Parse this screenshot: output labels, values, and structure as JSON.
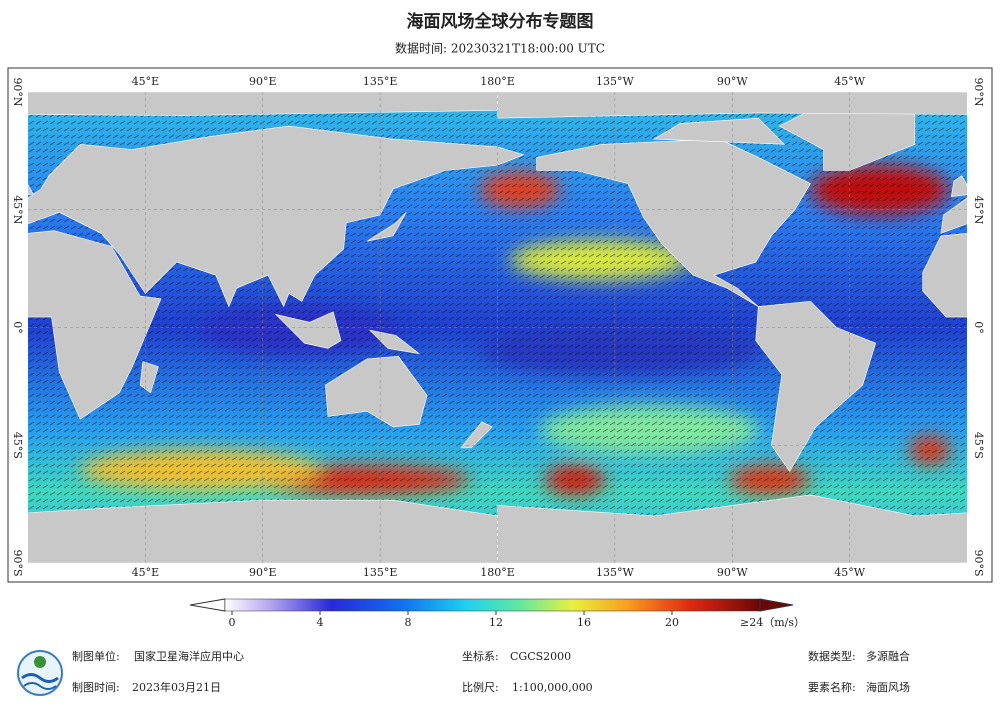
{
  "header": {
    "title": "海面风场全球分布专题图",
    "subtitle": "数据时间: 20230321T18:00:00 UTC"
  },
  "map": {
    "lon_labels": [
      "45°E",
      "90°E",
      "135°E",
      "180°E",
      "135°W",
      "90°W",
      "45°W"
    ],
    "lat_labels": [
      "90°N",
      "45°N",
      "0°",
      "45°S",
      "90°S"
    ]
  },
  "legend": {
    "range": [
      0,
      24
    ],
    "ticks": [
      0,
      4,
      8,
      12,
      16,
      20
    ],
    "max_label": "≥24（m/s）"
  },
  "footer": {
    "items": [
      {
        "label": "制图单位:",
        "value": "国家卫星海洋应用中心"
      },
      {
        "label": "制图时间:",
        "value": "2023年03月21日"
      },
      {
        "label": "坐标系:",
        "value": "CGCS2000"
      },
      {
        "label": "比例尺:",
        "value": "1:100,000,000"
      },
      {
        "label": "数据类型:",
        "value": "多源融合"
      },
      {
        "label": "要素名称:",
        "value": "海面风场"
      }
    ]
  }
}
